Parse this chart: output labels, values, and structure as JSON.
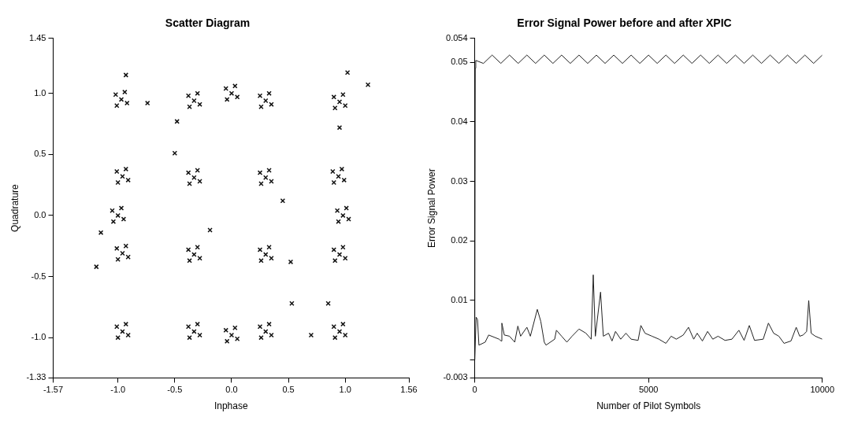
{
  "chart_data": [
    {
      "type": "scatter",
      "title": "Scatter Diagram",
      "xlabel": "Inphase",
      "ylabel": "Quadrature",
      "marker": "cross",
      "color": "#111111",
      "xlim": [
        -1.57,
        1.56
      ],
      "ylim": [
        -1.33,
        1.45
      ],
      "xticks": [
        -1.57,
        {
          "value": -1,
          "label": "-1.0"
        },
        {
          "value": -0.5,
          "label": "-0.5"
        },
        {
          "value": 0,
          "label": "0.0"
        },
        {
          "value": 0.5,
          "label": "0.5"
        },
        {
          "value": 1,
          "label": "1.0"
        },
        1.56
      ],
      "yticks": [
        -1.33,
        {
          "value": -1,
          "label": "-1.0"
        },
        {
          "value": -0.5,
          "label": "-0.5"
        },
        {
          "value": 0,
          "label": "0.0"
        },
        {
          "value": 0.5,
          "label": "0.5"
        },
        {
          "value": 1,
          "label": "1.0"
        },
        1.45
      ],
      "x": [
        -1.02,
        -0.92,
        -0.94,
        -1.01,
        -0.97,
        -0.38,
        -0.28,
        -0.3,
        -0.37,
        -0.33,
        -0.05,
        0.05,
        0.03,
        -0.04,
        0.0,
        0.25,
        0.35,
        0.33,
        0.26,
        0.3,
        0.9,
        1.0,
        0.98,
        0.91,
        0.95,
        -1.01,
        -0.91,
        -0.93,
        -1.0,
        -0.96,
        -0.38,
        -0.28,
        -0.3,
        -0.37,
        -0.33,
        0.25,
        0.35,
        0.33,
        0.26,
        0.3,
        0.89,
        0.99,
        0.97,
        0.9,
        0.94,
        -1.05,
        -0.95,
        -0.97,
        -1.04,
        -1.0,
        0.93,
        1.03,
        1.01,
        0.94,
        0.98,
        -1.01,
        -0.91,
        -0.93,
        -1.0,
        -0.96,
        -0.38,
        -0.28,
        -0.3,
        -0.37,
        -0.33,
        0.25,
        0.35,
        0.33,
        0.26,
        0.3,
        0.9,
        1.0,
        0.98,
        0.91,
        0.95,
        -1.01,
        -0.91,
        -0.93,
        -1.0,
        -0.96,
        -0.38,
        -0.28,
        -0.3,
        -0.37,
        -0.33,
        -0.05,
        0.05,
        0.03,
        -0.04,
        0.0,
        0.25,
        0.35,
        0.33,
        0.26,
        0.3,
        0.9,
        1.0,
        0.98,
        0.91,
        0.95,
        -0.74,
        -0.48,
        1.2,
        0.95,
        -0.5,
        0.45,
        -1.15,
        -1.19,
        0.52,
        0.53,
        0.85,
        0.7,
        -0.19,
        1.02,
        -0.93
      ],
      "values": [
        0.99,
        0.92,
        1.01,
        0.9,
        0.95,
        0.98,
        0.91,
        1.0,
        0.89,
        0.94,
        1.04,
        0.97,
        1.06,
        0.95,
        1.0,
        0.98,
        0.91,
        1.0,
        0.89,
        0.94,
        0.97,
        0.9,
        0.99,
        0.88,
        0.93,
        0.36,
        0.29,
        0.38,
        0.27,
        0.32,
        0.35,
        0.28,
        0.37,
        0.26,
        0.31,
        0.35,
        0.28,
        0.37,
        0.26,
        0.31,
        0.36,
        0.29,
        0.38,
        0.27,
        0.32,
        0.04,
        -0.03,
        0.06,
        -0.05,
        0.0,
        0.04,
        -0.03,
        0.06,
        -0.05,
        0.0,
        -0.27,
        -0.34,
        -0.25,
        -0.36,
        -0.31,
        -0.28,
        -0.35,
        -0.26,
        -0.37,
        -0.32,
        -0.28,
        -0.35,
        -0.26,
        -0.37,
        -0.32,
        -0.28,
        -0.35,
        -0.26,
        -0.37,
        -0.32,
        -0.91,
        -0.98,
        -0.89,
        -1.0,
        -0.95,
        -0.91,
        -0.98,
        -0.89,
        -1.0,
        -0.95,
        -0.94,
        -1.01,
        -0.92,
        -1.03,
        -0.98,
        -0.91,
        -0.98,
        -0.89,
        -1.0,
        -0.95,
        -0.91,
        -0.98,
        -0.89,
        -1.0,
        -0.95,
        0.92,
        0.77,
        1.07,
        0.72,
        0.51,
        0.12,
        -0.14,
        -0.42,
        -0.38,
        -0.72,
        -0.72,
        -0.98,
        -0.12,
        1.17,
        1.15
      ]
    },
    {
      "type": "line",
      "title": "Error Signal Power before and after XPIC",
      "xlabel": "Number of Pilot Symbols",
      "ylabel": "Error Signal Power",
      "marker": "none",
      "xlim": [
        0,
        10000
      ],
      "ylim": [
        -0.003,
        0.054
      ],
      "xticks": [
        0,
        5000,
        10000
      ],
      "yticks": [
        -0.003,
        {
          "value": 0,
          "label": null
        },
        0.01,
        0.02,
        0.03,
        0.04,
        0.05,
        0.054
      ],
      "series": [
        {
          "color": "#222222",
          "x": [
            0,
            15,
            30,
            250,
            500,
            750,
            1000,
            1250,
            1500,
            1750,
            2000,
            2250,
            2500,
            2750,
            3000,
            3250,
            3500,
            3750,
            4000,
            4250,
            4500,
            4750,
            5000,
            5250,
            5500,
            5750,
            6000,
            6250,
            6500,
            6750,
            7000,
            7250,
            7500,
            7750,
            8000,
            8250,
            8500,
            8750,
            9000,
            9250,
            9500,
            9750,
            10000
          ],
          "values": [
            0,
            0.049,
            0.0503,
            0.0498,
            0.0512,
            0.0498,
            0.0512,
            0.0498,
            0.0512,
            0.0498,
            0.0512,
            0.0498,
            0.0512,
            0.0498,
            0.0512,
            0.0498,
            0.0512,
            0.0498,
            0.0512,
            0.0498,
            0.0512,
            0.0498,
            0.0512,
            0.0498,
            0.0512,
            0.0498,
            0.0512,
            0.0498,
            0.0512,
            0.0498,
            0.0512,
            0.0498,
            0.0512,
            0.0498,
            0.0512,
            0.0498,
            0.0512,
            0.0498,
            0.0512,
            0.0498,
            0.0512,
            0.0498,
            0.0512
          ]
        },
        {
          "color": "#222222",
          "x": [
            0,
            40,
            80,
            120,
            300,
            400,
            700,
            760,
            780,
            850,
            1000,
            1150,
            1240,
            1320,
            1500,
            1600,
            1800,
            1900,
            2000,
            2050,
            2300,
            2350,
            2500,
            2650,
            2800,
            3000,
            3200,
            3350,
            3410,
            3470,
            3620,
            3700,
            3850,
            3950,
            4050,
            4200,
            4350,
            4500,
            4700,
            4780,
            4900,
            5100,
            5300,
            5500,
            5650,
            5800,
            6000,
            6150,
            6300,
            6400,
            6550,
            6700,
            6850,
            7000,
            7200,
            7400,
            7600,
            7750,
            7900,
            8050,
            8300,
            8450,
            8600,
            8750,
            8900,
            9100,
            9250,
            9350,
            9450,
            9550,
            9610,
            9680,
            9800,
            10000
          ],
          "values": [
            0,
            0.0072,
            0.0068,
            0.0025,
            0.003,
            0.0042,
            0.0035,
            0.0032,
            0.0062,
            0.0042,
            0.004,
            0.003,
            0.0057,
            0.004,
            0.0055,
            0.004,
            0.0085,
            0.0065,
            0.003,
            0.0025,
            0.0035,
            0.005,
            0.004,
            0.003,
            0.004,
            0.0052,
            0.0045,
            0.0035,
            0.0143,
            0.004,
            0.0114,
            0.004,
            0.0045,
            0.0032,
            0.0048,
            0.0035,
            0.0045,
            0.0035,
            0.0033,
            0.0058,
            0.0045,
            0.004,
            0.0035,
            0.0028,
            0.004,
            0.0035,
            0.0042,
            0.0055,
            0.0035,
            0.0045,
            0.0032,
            0.0048,
            0.0035,
            0.004,
            0.0033,
            0.0035,
            0.005,
            0.0033,
            0.0058,
            0.0033,
            0.0035,
            0.0062,
            0.0045,
            0.004,
            0.0028,
            0.0032,
            0.0055,
            0.004,
            0.0042,
            0.0048,
            0.01,
            0.0045,
            0.004,
            0.0035
          ]
        }
      ]
    }
  ]
}
